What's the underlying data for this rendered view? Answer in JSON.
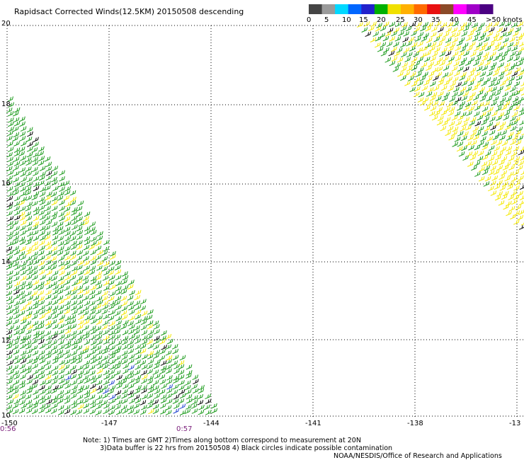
{
  "title": "Rapidsact Corrected Winds(12.5KM) 20150508 descending",
  "legend": {
    "labels": [
      "0",
      "5",
      "10",
      "15",
      "20",
      "25",
      "30",
      "35",
      "40",
      "45",
      ">50 knots"
    ],
    "colors": [
      "#444444",
      "#9a9a9a",
      "#00d8ff",
      "#0066ff",
      "#2222cc",
      "#00b000",
      "#f0e000",
      "#ffb000",
      "#ff6a00",
      "#e81010",
      "#8b4a28",
      "#ff00ff",
      "#a000c8",
      "#4b0082"
    ]
  },
  "map": {
    "lat_labels": [
      "20",
      "18",
      "16",
      "14",
      "12",
      "10"
    ],
    "lon_labels": [
      "-150",
      "-147",
      "-144",
      "-141",
      "-138",
      "-13"
    ],
    "time_labels": [
      "0:56",
      "0:57"
    ]
  },
  "wind_colors": {
    "green": "#1a9a1a",
    "yellow": "#f4e800",
    "black": "#000000",
    "blue": "#1d3fcf"
  },
  "notes": [
    "Note: 1) Times are GMT 2)Times along bottom correspond to measurement at 20N",
    "3)Data buffer is 22 hrs from 20150508 4) Black circles indicate possible contamination",
    "NOAA/NESDIS/Office of Research and Applications"
  ]
}
